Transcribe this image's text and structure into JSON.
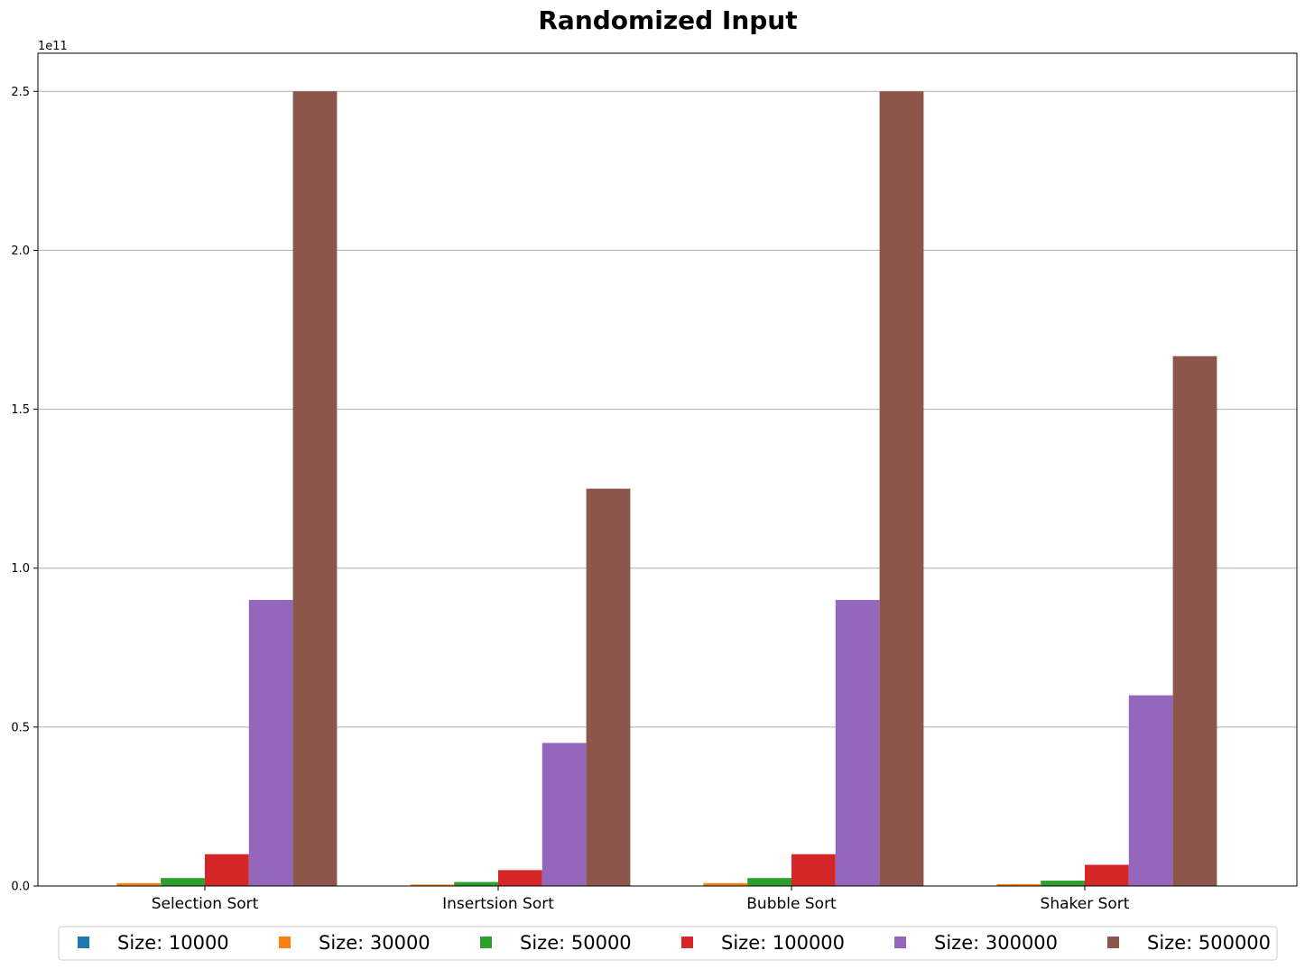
{
  "chart_data": {
    "type": "bar",
    "title": "Randomized Input",
    "xlabel": "",
    "ylabel": "",
    "y_offset_label": "1e11",
    "y_scale": 100000000000,
    "ylim": [
      0,
      2.62
    ],
    "yticks": [
      0.0,
      0.5,
      1.0,
      1.5,
      2.0,
      2.5
    ],
    "ytick_labels": [
      "0.0",
      "0.5",
      "1.0",
      "1.5",
      "2.0",
      "2.5"
    ],
    "grid": "horizontal",
    "legend_position": "bottom",
    "categories": [
      "Selection Sort",
      "Insertsion Sort",
      "Bubble Sort",
      "Shaker Sort"
    ],
    "series": [
      {
        "name": "Size: 10000",
        "color": "#1f77b4",
        "values": [
          0.001,
          0.0005,
          0.001,
          0.0007
        ]
      },
      {
        "name": "Size: 30000",
        "color": "#ff7f0e",
        "values": [
          0.009,
          0.0045,
          0.009,
          0.006
        ]
      },
      {
        "name": "Size: 50000",
        "color": "#2ca02c",
        "values": [
          0.025,
          0.0125,
          0.025,
          0.0167
        ]
      },
      {
        "name": "Size: 100000",
        "color": "#d62728",
        "values": [
          0.1,
          0.05,
          0.1,
          0.0667
        ]
      },
      {
        "name": "Size: 300000",
        "color": "#9467bd",
        "values": [
          0.9,
          0.45,
          0.9,
          0.6
        ]
      },
      {
        "name": "Size: 500000",
        "color": "#8c564b",
        "values": [
          2.5,
          1.25,
          2.5,
          1.667
        ]
      }
    ]
  }
}
